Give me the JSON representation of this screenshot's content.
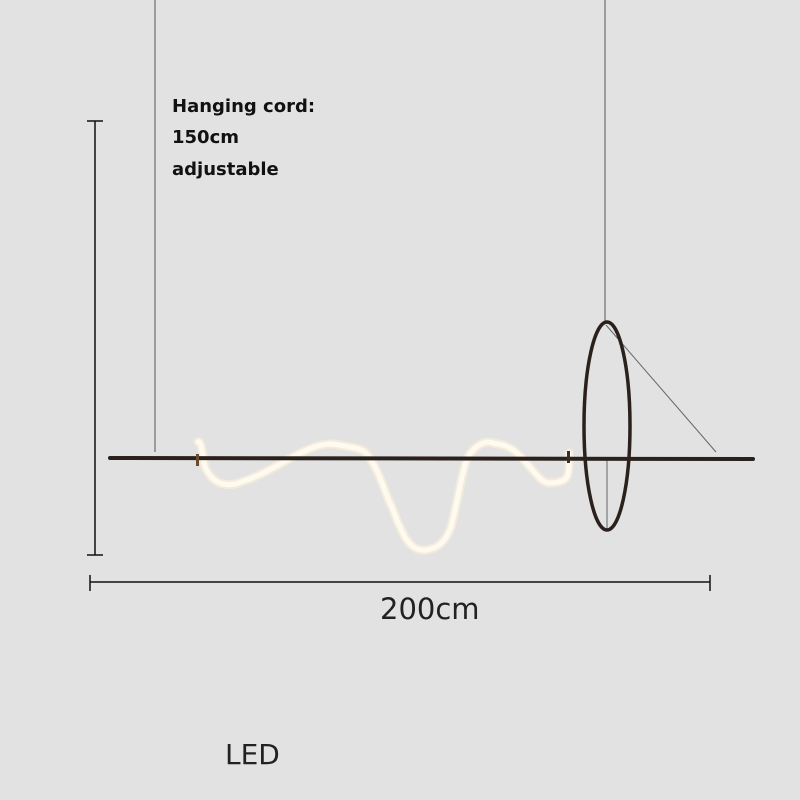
{
  "annotation": {
    "line1": "Hanging cord:",
    "line2": "150cm",
    "line3": "adjustable"
  },
  "width_label": "200cm",
  "light_type": "LED",
  "colors": {
    "background": "#e2e2e2",
    "rod": "#2a201c",
    "led_strip": "#fff8ec",
    "cord": "#555555"
  }
}
